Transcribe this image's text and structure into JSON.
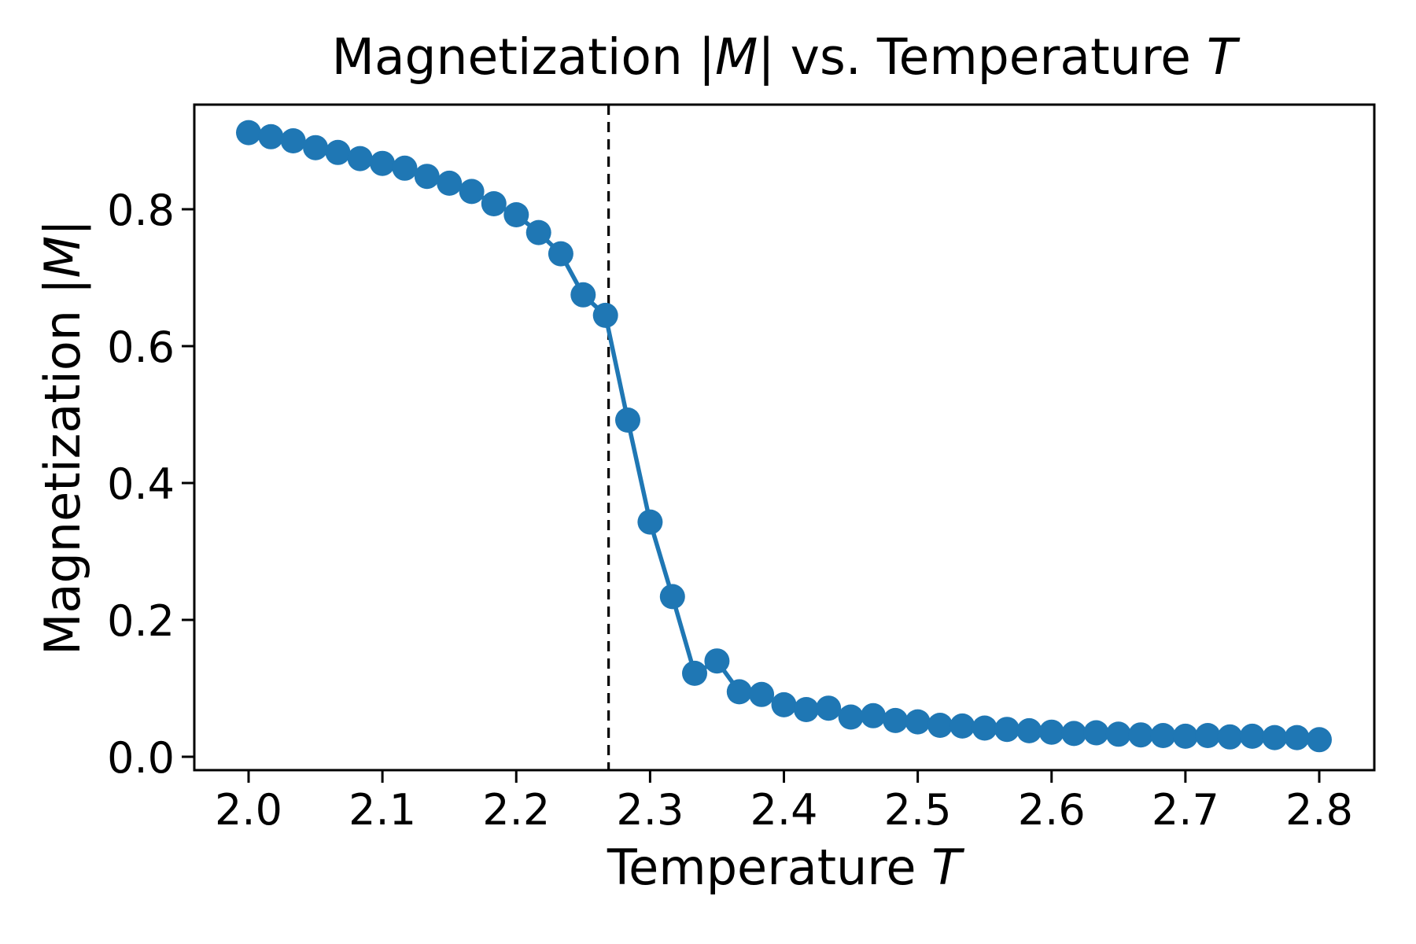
{
  "figure": {
    "title": {
      "part1": "Magnetization |",
      "m": "M",
      "part2": "| vs. Temperature ",
      "t": "T"
    },
    "x_axis": {
      "label_part1": "Temperature ",
      "label_italic": "T",
      "tick_labels": [
        "2.0",
        "2.1",
        "2.2",
        "2.3",
        "2.4",
        "2.5",
        "2.6",
        "2.7",
        "2.8"
      ]
    },
    "y_axis": {
      "label_part1": "Magnetization |",
      "label_italic": "M",
      "label_part2": "|",
      "tick_labels": [
        "0.0",
        "0.2",
        "0.4",
        "0.6",
        "0.8"
      ]
    }
  },
  "chart_data": {
    "type": "line",
    "title": "Magnetization |M| vs. Temperature T",
    "xlabel": "Temperature T",
    "ylabel": "Magnetization |M|",
    "x": [
      2.0,
      2.0167,
      2.0333,
      2.05,
      2.0667,
      2.0833,
      2.1,
      2.1167,
      2.1333,
      2.15,
      2.1667,
      2.1833,
      2.2,
      2.2167,
      2.2333,
      2.25,
      2.2667,
      2.2833,
      2.3,
      2.3167,
      2.3333,
      2.35,
      2.3667,
      2.3833,
      2.4,
      2.4167,
      2.4333,
      2.45,
      2.4667,
      2.4833,
      2.5,
      2.5167,
      2.5333,
      2.55,
      2.5667,
      2.5833,
      2.6,
      2.6167,
      2.6333,
      2.65,
      2.6667,
      2.6833,
      2.7,
      2.7167,
      2.7333,
      2.75,
      2.7667,
      2.7833,
      2.8
    ],
    "y": [
      0.912,
      0.906,
      0.9,
      0.89,
      0.883,
      0.874,
      0.867,
      0.86,
      0.848,
      0.838,
      0.826,
      0.808,
      0.792,
      0.766,
      0.735,
      0.675,
      0.645,
      0.492,
      0.343,
      0.234,
      0.122,
      0.14,
      0.095,
      0.091,
      0.076,
      0.069,
      0.071,
      0.058,
      0.06,
      0.053,
      0.051,
      0.046,
      0.045,
      0.042,
      0.04,
      0.038,
      0.036,
      0.034,
      0.035,
      0.033,
      0.032,
      0.031,
      0.03,
      0.031,
      0.029,
      0.03,
      0.028,
      0.028,
      0.025
    ],
    "xticks": [
      2.0,
      2.1,
      2.2,
      2.3,
      2.4,
      2.5,
      2.6,
      2.7,
      2.8
    ],
    "yticks": [
      0.0,
      0.2,
      0.4,
      0.6,
      0.8
    ],
    "xlim": [
      1.96,
      2.84
    ],
    "ylim": [
      -0.02,
      0.955
    ],
    "grid": false,
    "legend": null,
    "series_color": "#1f77b4",
    "marker": "circle",
    "vline": {
      "x": 2.269,
      "style": "dashed",
      "color": "#000000"
    }
  }
}
